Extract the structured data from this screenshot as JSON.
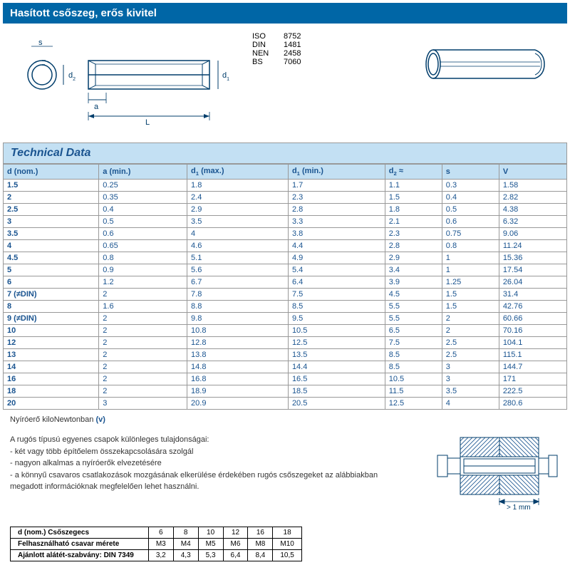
{
  "title": "Hasított csőszeg, erős kivitel",
  "standards": [
    {
      "label": "ISO",
      "value": "8752"
    },
    {
      "label": "DIN",
      "value": "1481"
    },
    {
      "label": "NEN",
      "value": "2458"
    },
    {
      "label": "BS",
      "value": "7060"
    }
  ],
  "dim_labels": {
    "s": "s",
    "d2": "d₂",
    "d1": "d₁",
    "a": "a",
    "L": "L"
  },
  "tech_header": "Technical Data",
  "columns": [
    "d (nom.)",
    "a (min.)",
    "d₁ (max.)",
    "d₁ (min.)",
    "d₂ ≈",
    "s",
    "V"
  ],
  "rows": [
    [
      "1.5",
      "0.25",
      "1.8",
      "1.7",
      "1.1",
      "0.3",
      "1.58"
    ],
    [
      "2",
      "0.35",
      "2.4",
      "2.3",
      "1.5",
      "0.4",
      "2.82"
    ],
    [
      "2.5",
      "0.4",
      "2.9",
      "2.8",
      "1.8",
      "0.5",
      "4.38"
    ],
    [
      "3",
      "0.5",
      "3.5",
      "3.3",
      "2.1",
      "0.6",
      "6.32"
    ],
    [
      "3.5",
      "0.6",
      "4",
      "3.8",
      "2.3",
      "0.75",
      "9.06"
    ],
    [
      "4",
      "0.65",
      "4.6",
      "4.4",
      "2.8",
      "0.8",
      "11.24"
    ],
    [
      "4.5",
      "0.8",
      "5.1",
      "4.9",
      "2.9",
      "1",
      "15.36"
    ],
    [
      "5",
      "0.9",
      "5.6",
      "5.4",
      "3.4",
      "1",
      "17.54"
    ],
    [
      "6",
      "1.2",
      "6.7",
      "6.4",
      "3.9",
      "1.25",
      "26.04"
    ],
    [
      "7 (≠DIN)",
      "2",
      "7.8",
      "7.5",
      "4.5",
      "1.5",
      "31.4"
    ],
    [
      "8",
      "1.6",
      "8.8",
      "8.5",
      "5.5",
      "1.5",
      "42.76"
    ],
    [
      "9 (≠DIN)",
      "2",
      "9.8",
      "9.5",
      "5.5",
      "2",
      "60.66"
    ],
    [
      "10",
      "2",
      "10.8",
      "10.5",
      "6.5",
      "2",
      "70.16"
    ],
    [
      "12",
      "2",
      "12.8",
      "12.5",
      "7.5",
      "2.5",
      "104.1"
    ],
    [
      "13",
      "2",
      "13.8",
      "13.5",
      "8.5",
      "2.5",
      "115.1"
    ],
    [
      "14",
      "2",
      "14.8",
      "14.4",
      "8.5",
      "3",
      "144.7"
    ],
    [
      "16",
      "2",
      "16.8",
      "16.5",
      "10.5",
      "3",
      "171"
    ],
    [
      "18",
      "2",
      "18.9",
      "18.5",
      "11.5",
      "3.5",
      "222.5"
    ],
    [
      "20",
      "3",
      "20.9",
      "20.5",
      "12.5",
      "4",
      "280.6"
    ]
  ],
  "footnote_text": "Nyíróerő kiloNewtonban",
  "footnote_v": "(v)",
  "description": {
    "intro": "A rugós típusú egyenes csapok különleges tulajdonságai:",
    "bullets": [
      "- két vagy több építőelem összekapcsolására szolgál",
      "- nagyon alkalmas a nyíróerők elvezetésére",
      "- a könnyű csavaros csatlakozások mozgásának elkerülése érdekében rugós csőszegeket az alábbiakban megadott információknak megfelelően lehet használni."
    ]
  },
  "small_drawing_label": "> 1 mm",
  "sizes_table": {
    "rows": [
      [
        "d (nom.) Csőszegecs",
        "6",
        "8",
        "10",
        "12",
        "16",
        "18"
      ],
      [
        "Felhasználható csavar mérete",
        "M3",
        "M4",
        "M5",
        "M6",
        "M8",
        "M10"
      ],
      [
        "Ajánlott alátét-szabvány: DIN 7349",
        "3,2",
        "4,3",
        "5,3",
        "6,4",
        "8,4",
        "10,5"
      ]
    ]
  },
  "colors": {
    "title_bg": "#0066a6",
    "title_fg": "#ffffff",
    "header_bg": "#c3e0f3",
    "header_fg": "#1a5490",
    "cell_fg": "#1a5490",
    "border": "#999999",
    "drawing_stroke": "#003d6b",
    "hatch": "#1a5490"
  }
}
